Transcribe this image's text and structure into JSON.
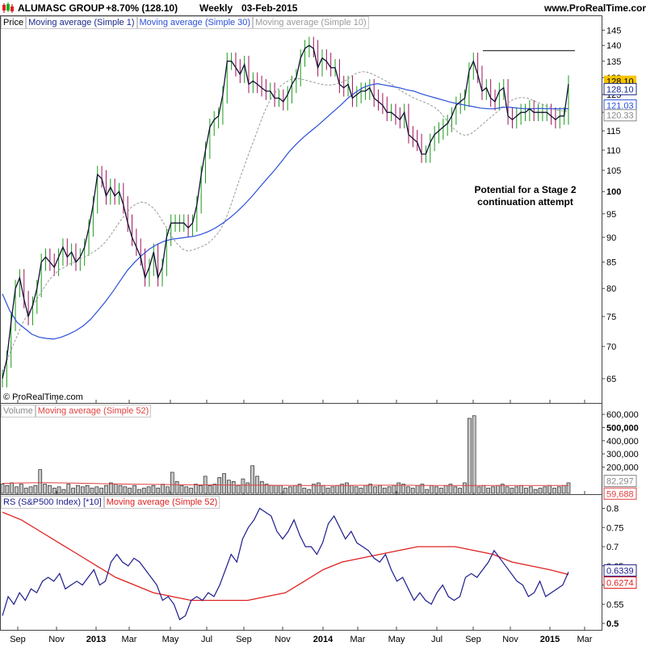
{
  "header": {
    "title": "ALUMASC GROUP",
    "change": "+8.70% (128.10)",
    "period": "Weekly",
    "date": "03-Feb-2015",
    "site": "www.ProRealTime.com"
  },
  "price_panel": {
    "legend": [
      "Price",
      "Moving average (Simple 1)",
      "Moving average (Simple 30)",
      "Moving average (Simple 10)"
    ],
    "annotation_line1": "Potential for a Stage 2",
    "annotation_line2": "continuation attempt",
    "copyright": "© ProRealTime.com",
    "badges": {
      "price": "128.10",
      "ma1": "128.10",
      "ma30": "121.03",
      "ma10": "120.33"
    }
  },
  "volume_panel": {
    "legend": [
      "Volume",
      "Moving average (Simple 52)"
    ],
    "badges": {
      "vol": "82,297",
      "ma52": "59,688"
    }
  },
  "rs_panel": {
    "legend": [
      "RS (S&P500 Index) [*10]",
      "Moving average (Simple 52)"
    ],
    "badges": {
      "rs": "0.6339",
      "ma52": "0.6274"
    }
  },
  "colors": {
    "up": "#1a9a1a",
    "down": "#a0105a",
    "ma1": "#111133",
    "ma30": "#2a4fd8",
    "ma10": "#9a9a9a",
    "volume": "#c8c8c8",
    "vol_ma": "#e04040",
    "rs": "#1c1c8c",
    "rs_ma": "#e02020",
    "badge_price": "#f5c400"
  },
  "chart_data": [
    {
      "type": "line",
      "title": "Price",
      "x_ticks": [
        "Sep",
        "Nov",
        "2013",
        "Mar",
        "May",
        "Jul",
        "Sep",
        "Nov",
        "2014",
        "Mar",
        "May",
        "Jul",
        "Sep",
        "Nov",
        "2015",
        "Mar"
      ],
      "y_ticks": [
        "65",
        "70",
        "75",
        "80",
        "85",
        "90",
        "95",
        "100",
        "105",
        "110",
        "115",
        "120",
        "125",
        "130",
        "135",
        "140",
        "145"
      ],
      "y_scale": "log",
      "ylim": [
        62.5,
        147
      ],
      "series": [
        {
          "name": "Moving average (Simple 1)",
          "values": [
            65,
            68,
            74,
            80,
            82,
            78,
            75,
            77,
            80,
            85,
            86,
            85,
            84,
            86,
            88,
            86,
            87,
            85,
            86,
            88,
            92,
            97,
            104,
            103,
            99,
            101,
            99,
            100,
            97,
            93,
            90,
            88,
            86,
            82,
            84,
            87,
            82,
            84,
            90,
            93,
            93,
            93,
            93,
            92,
            93,
            97,
            104,
            110,
            116,
            118,
            119,
            125,
            135,
            135,
            133,
            131,
            134,
            128,
            129,
            128,
            127,
            126,
            126,
            124,
            124,
            123,
            125,
            128,
            130,
            136,
            139,
            140,
            139,
            133,
            136,
            135,
            133,
            133,
            128,
            127,
            128,
            124,
            125,
            126,
            126,
            127,
            124,
            123,
            122,
            120,
            120,
            119,
            118,
            120,
            114,
            113,
            112,
            109,
            109,
            112,
            114,
            115,
            116,
            117,
            119,
            122,
            123,
            124,
            132,
            135,
            131,
            126,
            127,
            124,
            123,
            126,
            127,
            119,
            118,
            119,
            120,
            120,
            121,
            120,
            120,
            120,
            120,
            119,
            118,
            119,
            119,
            128.1
          ]
        },
        {
          "name": "Moving average (Simple 30)",
          "values": [
            79,
            76,
            74,
            73,
            72,
            71.5,
            71.3,
            71.2,
            71.5,
            72,
            72.6,
            73.4,
            74.5,
            76,
            77.6,
            79.4,
            81.4,
            83.4,
            85,
            86.4,
            87.6,
            88.5,
            89.2,
            89.6,
            89.8,
            90,
            90.2,
            90.6,
            91.2,
            92,
            93,
            94.2,
            95.6,
            97.2,
            99,
            101,
            103,
            105,
            107.2,
            109.6,
            111.6,
            113.4,
            115,
            116.6,
            118.4,
            120.2,
            122,
            124,
            125.6,
            127,
            127.8,
            128.2,
            127.8,
            127.4,
            127,
            126.4,
            126,
            125.2,
            124.6,
            124,
            123.4,
            122.8,
            122.4,
            122,
            121.6,
            121.2,
            121,
            121,
            121.4,
            121.4,
            121.2,
            121,
            121,
            121.1,
            121,
            121,
            121,
            121.03
          ]
        },
        {
          "name": "Moving average (Simple 10)",
          "values": [
            66,
            68,
            70,
            72,
            74,
            75.5,
            77,
            78.5,
            80,
            81.5,
            82.5,
            83.5,
            84,
            84.6,
            85,
            85.6,
            86,
            86.6,
            87.2,
            88,
            89,
            90.4,
            92,
            93.6,
            95,
            96.4,
            97.2,
            97.6,
            97.4,
            96.6,
            95.4,
            93.6,
            91.8,
            90,
            88.6,
            87.6,
            87.2,
            87.4,
            87.8,
            88.2,
            88.8,
            89.8,
            91,
            92.8,
            95.6,
            99,
            102.6,
            106,
            109.6,
            113,
            116.8,
            120.4,
            123.4,
            125.6,
            127.4,
            128.6,
            129.4,
            129.8,
            129.6,
            129.2,
            128.8,
            128.4,
            128,
            127.8,
            127.8,
            128.2,
            128.6,
            129.4,
            130.6,
            131.4,
            131.8,
            131.6,
            131,
            130.2,
            129.4,
            128.6,
            127.6,
            126.6,
            125.6,
            124.8,
            124,
            123.4,
            122.8,
            122.2,
            121.4,
            120.2,
            118.4,
            116.6,
            115.2,
            114.2,
            113.8,
            114.2,
            115.2,
            116.4,
            117.6,
            118.8,
            120,
            121.2,
            122.4,
            123.4,
            124,
            124.2,
            124,
            123.4,
            122.8,
            122.2,
            121.6,
            121,
            120.6,
            120.4,
            120.33
          ]
        }
      ]
    },
    {
      "type": "bar",
      "title": "Volume",
      "y_ticks": [
        "200,000",
        "300,000",
        "400,000",
        "500,000",
        "600,000"
      ],
      "ylim": [
        0,
        650000
      ],
      "values": [
        70000,
        60000,
        80000,
        50000,
        70000,
        40000,
        50000,
        60000,
        180000,
        70000,
        60000,
        40000,
        50000,
        30000,
        70000,
        40000,
        60000,
        50000,
        60000,
        40000,
        50000,
        40000,
        60000,
        80000,
        70000,
        60000,
        50000,
        40000,
        60000,
        30000,
        40000,
        50000,
        60000,
        40000,
        70000,
        50000,
        160000,
        90000,
        60000,
        50000,
        40000,
        70000,
        60000,
        130000,
        60000,
        70000,
        120000,
        150000,
        100000,
        90000,
        60000,
        110000,
        80000,
        210000,
        130000,
        90000,
        70000,
        60000,
        60000,
        60000,
        40000,
        50000,
        60000,
        70000,
        40000,
        30000,
        70000,
        80000,
        60000,
        40000,
        50000,
        60000,
        70000,
        80000,
        60000,
        50000,
        40000,
        60000,
        70000,
        50000,
        60000,
        40000,
        50000,
        60000,
        80000,
        70000,
        50000,
        40000,
        60000,
        70000,
        30000,
        60000,
        50000,
        40000,
        60000,
        70000,
        50000,
        40000,
        80000,
        570000,
        590000,
        50000,
        60000,
        40000,
        50000,
        60000,
        70000,
        50000,
        40000,
        50000,
        60000,
        40000,
        50000,
        30000,
        40000,
        50000,
        60000,
        40000,
        50000,
        60000,
        80000
      ],
      "series": [
        {
          "name": "Moving average (Simple 52)",
          "values": [
            76000,
            80000,
            81000,
            79000,
            76000,
            72000,
            70000,
            68000,
            66000,
            65000,
            64000,
            63000,
            62000,
            61000,
            60000,
            60000,
            61000,
            62000,
            62000,
            61000,
            60000,
            60000,
            60000,
            60000,
            60000,
            60000,
            59688
          ]
        }
      ]
    },
    {
      "type": "line",
      "title": "RS (S&P500 Index) [*10]",
      "y_ticks": [
        "0.5",
        "0.55",
        "0.6",
        "0.65",
        "0.7",
        "0.75",
        "0.8"
      ],
      "ylim": [
        0.5,
        0.82
      ],
      "series": [
        {
          "name": "RS (S&P500 Index) [*10]",
          "values": [
            0.52,
            0.57,
            0.55,
            0.58,
            0.56,
            0.59,
            0.58,
            0.61,
            0.62,
            0.61,
            0.63,
            0.59,
            0.6,
            0.61,
            0.6,
            0.62,
            0.64,
            0.6,
            0.61,
            0.66,
            0.68,
            0.66,
            0.65,
            0.67,
            0.66,
            0.64,
            0.62,
            0.6,
            0.56,
            0.57,
            0.55,
            0.51,
            0.52,
            0.56,
            0.57,
            0.56,
            0.58,
            0.57,
            0.6,
            0.64,
            0.68,
            0.66,
            0.72,
            0.75,
            0.77,
            0.8,
            0.79,
            0.78,
            0.74,
            0.72,
            0.74,
            0.77,
            0.73,
            0.7,
            0.7,
            0.68,
            0.71,
            0.76,
            0.78,
            0.75,
            0.72,
            0.74,
            0.71,
            0.7,
            0.69,
            0.67,
            0.66,
            0.68,
            0.64,
            0.61,
            0.62,
            0.59,
            0.56,
            0.58,
            0.56,
            0.55,
            0.58,
            0.6,
            0.57,
            0.56,
            0.57,
            0.62,
            0.63,
            0.62,
            0.64,
            0.66,
            0.69,
            0.67,
            0.65,
            0.63,
            0.61,
            0.6,
            0.57,
            0.58,
            0.61,
            0.57,
            0.58,
            0.59,
            0.6,
            0.6339
          ]
        },
        {
          "name": "Moving average (Simple 52)",
          "values": [
            0.79,
            0.77,
            0.74,
            0.71,
            0.68,
            0.65,
            0.62,
            0.6,
            0.58,
            0.57,
            0.56,
            0.56,
            0.56,
            0.56,
            0.57,
            0.58,
            0.61,
            0.64,
            0.66,
            0.67,
            0.68,
            0.69,
            0.7,
            0.7,
            0.7,
            0.69,
            0.68,
            0.66,
            0.65,
            0.64,
            0.6274
          ]
        }
      ]
    }
  ]
}
